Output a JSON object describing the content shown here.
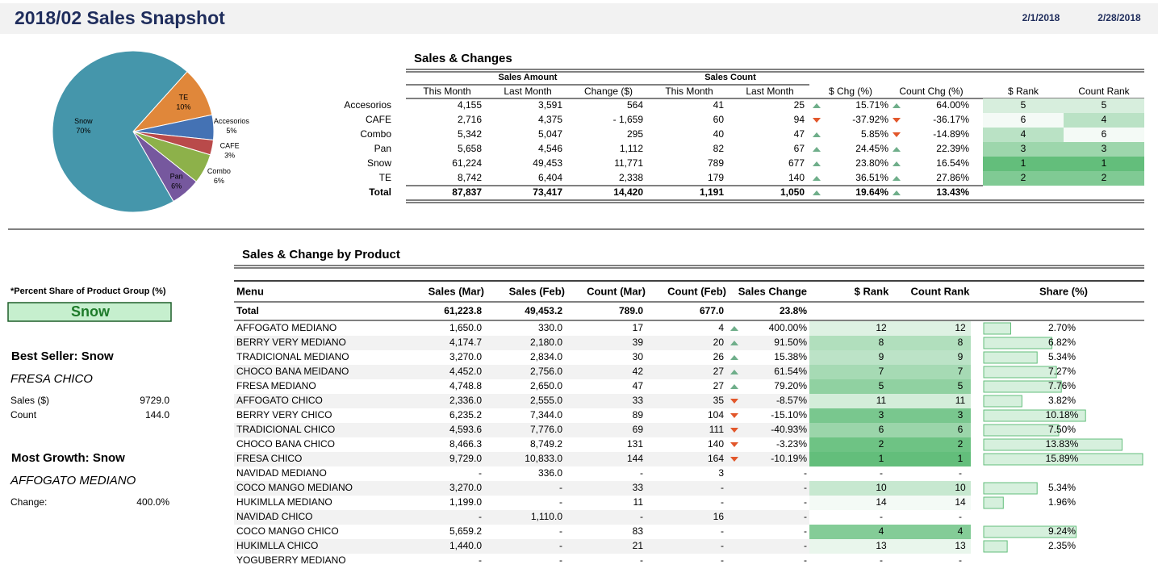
{
  "header": {
    "title": "2018/02 Sales Snapshot",
    "start_date": "2/1/2018",
    "end_date": "2/28/2018"
  },
  "group_pie": {
    "type": "pie",
    "categories": [
      "TE",
      "Accesorios",
      "CAFE",
      "Combo",
      "Pan",
      "Snow"
    ],
    "values": [
      10,
      5,
      3,
      6,
      6,
      70
    ],
    "value_labels": [
      "10%",
      "5%",
      "3%",
      "6%",
      "6%",
      "70%"
    ],
    "colors": [
      "#e0873a",
      "#4472b4",
      "#b94a4a",
      "#8db14a",
      "#76589e",
      "#4596ab"
    ]
  },
  "sales_changes": {
    "title": "Sales & Changes",
    "groups": [
      "Sales Amount",
      "Sales Count"
    ],
    "columns": [
      "This Month",
      "Last Month",
      "Change ($)",
      "This Month",
      "Last Month",
      "$ Chg (%)",
      "Count Chg (%)",
      "$ Rank",
      "Count Rank"
    ],
    "rows": [
      {
        "label": "Accesorios",
        "cells": [
          "4,155",
          "3,591",
          "564",
          "41",
          "25",
          "15.71%",
          "64.00%",
          "5",
          "5"
        ]
      },
      {
        "label": "CAFE",
        "cells": [
          "2,716",
          "4,375",
          "- 1,659",
          "60",
          "94",
          "-37.92%",
          "-36.17%",
          "6",
          "4"
        ]
      },
      {
        "label": "Combo",
        "cells": [
          "5,342",
          "5,047",
          "295",
          "40",
          "47",
          "5.85%",
          "-14.89%",
          "4",
          "6"
        ]
      },
      {
        "label": "Pan",
        "cells": [
          "5,658",
          "4,546",
          "1,112",
          "82",
          "67",
          "24.45%",
          "22.39%",
          "3",
          "3"
        ]
      },
      {
        "label": "Snow",
        "cells": [
          "61,224",
          "49,453",
          "11,771",
          "789",
          "677",
          "23.80%",
          "16.54%",
          "1",
          "1"
        ]
      },
      {
        "label": "TE",
        "cells": [
          "8,742",
          "6,404",
          "2,338",
          "179",
          "140",
          "36.51%",
          "27.86%",
          "2",
          "2"
        ]
      }
    ],
    "total": {
      "label": "Total",
      "cells": [
        "87,837",
        "73,417",
        "14,420",
        "1,191",
        "1,050",
        "19.64%",
        "13.43%"
      ]
    }
  },
  "product": {
    "title": "Sales & Change by Product",
    "columns": [
      "Menu",
      "Sales (Mar)",
      "Sales (Feb)",
      "Count (Mar)",
      "Count (Feb)",
      "Sales Change",
      "$ Rank",
      "Count Rank",
      "Share (%)"
    ],
    "total": [
      "Total",
      "61,223.8",
      "49,453.2",
      "789.0",
      "677.0",
      "23.8%"
    ],
    "rows": [
      {
        "cells": [
          "AFFOGATO MEDIANO",
          "1,650.0",
          "330.0",
          "17",
          "4",
          "400.00%",
          "12",
          "12"
        ],
        "share": 2.7,
        "share_label": "2.70%"
      },
      {
        "cells": [
          "BERRY VERY MEDIANO",
          "4,174.7",
          "2,180.0",
          "39",
          "20",
          "91.50%",
          "8",
          "8"
        ],
        "share": 6.82,
        "share_label": "6.82%"
      },
      {
        "cells": [
          "TRADICIONAL MEDIANO",
          "3,270.0",
          "2,834.0",
          "30",
          "26",
          "15.38%",
          "9",
          "9"
        ],
        "share": 5.34,
        "share_label": "5.34%"
      },
      {
        "cells": [
          "CHOCO BANA MEIDANO",
          "4,452.0",
          "2,756.0",
          "42",
          "27",
          "61.54%",
          "7",
          "7"
        ],
        "share": 7.27,
        "share_label": "7.27%"
      },
      {
        "cells": [
          "FRESA MEDIANO",
          "4,748.8",
          "2,650.0",
          "47",
          "27",
          "79.20%",
          "5",
          "5"
        ],
        "share": 7.76,
        "share_label": "7.76%"
      },
      {
        "cells": [
          "AFFOGATO CHICO",
          "2,336.0",
          "2,555.0",
          "33",
          "35",
          "-8.57%",
          "11",
          "11"
        ],
        "share": 3.82,
        "share_label": "3.82%"
      },
      {
        "cells": [
          "BERRY VERY CHICO",
          "6,235.2",
          "7,344.0",
          "89",
          "104",
          "-15.10%",
          "3",
          "3"
        ],
        "share": 10.18,
        "share_label": "10.18%"
      },
      {
        "cells": [
          "TRADICIONAL CHICO",
          "4,593.6",
          "7,776.0",
          "69",
          "111",
          "-40.93%",
          "6",
          "6"
        ],
        "share": 7.5,
        "share_label": "7.50%"
      },
      {
        "cells": [
          "CHOCO BANA CHICO",
          "8,466.3",
          "8,749.2",
          "131",
          "140",
          "-3.23%",
          "2",
          "2"
        ],
        "share": 13.83,
        "share_label": "13.83%"
      },
      {
        "cells": [
          "FRESA CHICO",
          "9,729.0",
          "10,833.0",
          "144",
          "164",
          "-10.19%",
          "1",
          "1"
        ],
        "share": 15.89,
        "share_label": "15.89%"
      },
      {
        "cells": [
          "NAVIDAD MEDIANO",
          "-",
          "336.0",
          "-",
          "3",
          "-",
          "-",
          "-"
        ],
        "share": null,
        "share_label": null
      },
      {
        "cells": [
          "COCO MANGO MEDIANO",
          "3,270.0",
          "-",
          "33",
          "-",
          "-",
          "10",
          "10"
        ],
        "share": 5.34,
        "share_label": "5.34%"
      },
      {
        "cells": [
          "HUKIMLLA MEDIANO",
          "1,199.0",
          "-",
          "11",
          "-",
          "-",
          "14",
          "14"
        ],
        "share": 1.96,
        "share_label": "1.96%"
      },
      {
        "cells": [
          "NAVIDAD  CHICO",
          "-",
          "1,110.0",
          "-",
          "16",
          "-",
          "-",
          "-"
        ],
        "share": null,
        "share_label": null
      },
      {
        "cells": [
          "COCO MANGO CHICO",
          "5,659.2",
          "-",
          "83",
          "-",
          "-",
          "4",
          "4"
        ],
        "share": 9.24,
        "share_label": "9.24%"
      },
      {
        "cells": [
          "HUKIMLLA CHICO",
          "1,440.0",
          "-",
          "21",
          "-",
          "-",
          "13",
          "13"
        ],
        "share": 2.35,
        "share_label": "2.35%"
      },
      {
        "cells": [
          "YOGUBERRY MEDIANO",
          "-",
          "-",
          "-",
          "-",
          "-",
          "-",
          "-"
        ],
        "share": null,
        "share_label": null
      }
    ]
  },
  "side": {
    "note": "*Percent Share of Product Group (%)",
    "group": "Snow",
    "best_title": "Best Seller: Snow",
    "best_item": "FRESA CHICO",
    "sales_label": "Sales ($)",
    "sales_value": "9729.0",
    "count_label": "Count",
    "count_value": "144.0",
    "growth_title": "Most Growth: Snow",
    "growth_item": "AFFOGATO MEDIANO",
    "change_label": "Change:",
    "change_value": "400.0%"
  }
}
